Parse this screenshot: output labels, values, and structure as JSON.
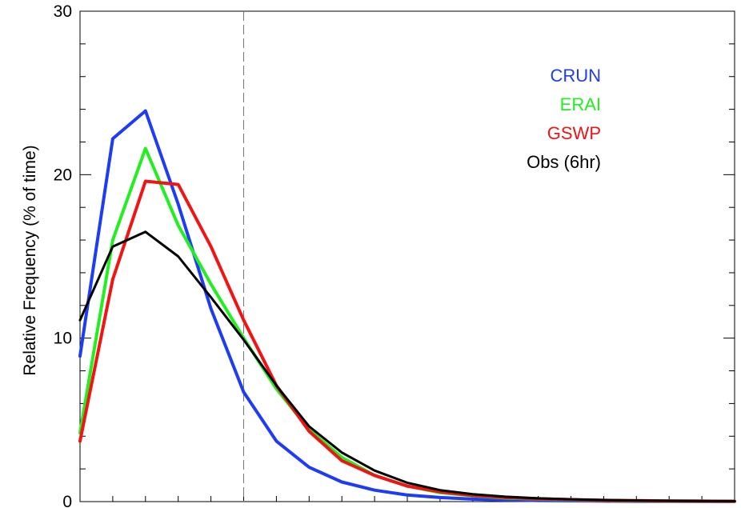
{
  "chart_data": {
    "type": "line",
    "ylabel": "Relative Frequency (% of time)",
    "ylim": [
      0,
      30
    ],
    "y_ticks": [
      0,
      10,
      20,
      30
    ],
    "y_tick_labels": [
      "0",
      "10",
      "20",
      "30"
    ],
    "x": [
      0,
      1,
      2,
      3,
      4,
      5,
      6,
      7,
      8,
      9,
      10,
      11,
      12,
      13,
      14,
      15,
      16,
      17,
      18,
      19,
      20
    ],
    "xlim": [
      0,
      20
    ],
    "reference_line_x": 5,
    "grid": false,
    "legend_position": "top-right",
    "series": [
      {
        "name": "CRUN",
        "color": "#1f3cf5",
        "values": [
          8.9,
          22.2,
          23.9,
          18.2,
          11.8,
          6.7,
          3.7,
          2.1,
          1.2,
          0.7,
          0.4,
          0.25,
          0.15,
          0.1,
          0.07,
          0.05,
          0.03,
          0.02,
          0.02,
          0.01,
          0.01
        ]
      },
      {
        "name": "ERAI",
        "color": "#22ee22",
        "values": [
          4.2,
          16.0,
          21.6,
          16.9,
          13.3,
          10.0,
          6.9,
          4.4,
          2.7,
          1.6,
          0.95,
          0.55,
          0.35,
          0.22,
          0.15,
          0.1,
          0.07,
          0.05,
          0.04,
          0.03,
          0.02
        ]
      },
      {
        "name": "GSWP",
        "color": "#f01414",
        "values": [
          3.7,
          13.6,
          19.6,
          19.4,
          15.6,
          11.1,
          7.1,
          4.3,
          2.5,
          1.6,
          0.95,
          0.6,
          0.38,
          0.25,
          0.17,
          0.12,
          0.08,
          0.06,
          0.04,
          0.03,
          0.02
        ]
      },
      {
        "name": "Obs (6hr)",
        "color": "#000000",
        "values": [
          11.1,
          15.6,
          16.5,
          15.0,
          12.5,
          9.9,
          7.1,
          4.6,
          3.0,
          1.9,
          1.15,
          0.7,
          0.45,
          0.3,
          0.2,
          0.14,
          0.1,
          0.07,
          0.05,
          0.04,
          0.03
        ]
      }
    ]
  }
}
